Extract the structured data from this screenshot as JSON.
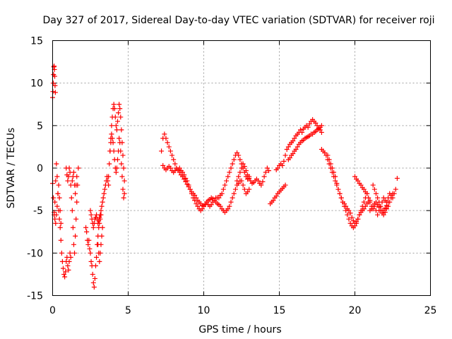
{
  "chart_data": {
    "type": "scatter",
    "title": "Day 327 of 2017, Sidereal Day-to-day VTEC variation (SDTVAR) for receiver roji",
    "xlabel": "GPS time / hours",
    "ylabel": "SDTVAR / TECUs",
    "xlim": [
      0,
      25
    ],
    "ylim": [
      -15,
      15
    ],
    "xticks": [
      0,
      5,
      10,
      15,
      20,
      25
    ],
    "yticks": [
      -15,
      -10,
      -5,
      0,
      5,
      10,
      15
    ],
    "grid": true,
    "marker": "plus",
    "color": "#ff0000",
    "series": [
      {
        "name": "SDTVAR",
        "x": [
          0.0,
          0.02,
          0.04,
          0.06,
          0.08,
          0.1,
          0.12,
          0.14,
          0.16,
          0.18
        ],
        "y": [
          8.3,
          9.0,
          10.0,
          11.0,
          11.9,
          12.0,
          11.6,
          10.8,
          9.7,
          8.9
        ]
      },
      {
        "name": "SDTVAR",
        "x": [
          0.0,
          0.05,
          0.1,
          0.15,
          0.2,
          0.25,
          0.3,
          0.35,
          0.4,
          0.45,
          0.5,
          0.55,
          0.6,
          0.65,
          0.7,
          0.75,
          0.8,
          0.85,
          0.9,
          0.95,
          1.0,
          1.05,
          1.1,
          1.15,
          1.2
        ],
        "y": [
          -1.8,
          -3.5,
          -5.5,
          -4.0,
          -1.5,
          0.5,
          -1.0,
          -3.0,
          -5.0,
          -6.0,
          -7.0,
          -8.5,
          -10.0,
          -11.0,
          -11.8,
          -12.5,
          -12.8,
          -12.2,
          -11.0,
          -10.5,
          -11.5,
          -12.0,
          -11.0,
          -10.0,
          -10.5
        ]
      },
      {
        "name": "SDTVAR",
        "x": [
          0.1,
          0.15,
          0.2,
          0.25,
          0.3,
          0.35,
          0.4,
          0.45,
          0.5,
          0.55
        ],
        "y": [
          -5.2,
          -6.0,
          -6.5,
          -5.5,
          -4.5,
          -3.0,
          -2.0,
          -3.5,
          -5.0,
          -6.5
        ]
      },
      {
        "name": "SDTVAR",
        "x": [
          0.9,
          0.95,
          1.0,
          1.05,
          1.1,
          1.15,
          1.2,
          1.25,
          1.3,
          1.35,
          1.4,
          1.45,
          1.5,
          1.55,
          1.6,
          1.65,
          1.7
        ],
        "y": [
          0.0,
          -0.8,
          -1.5,
          -1.0,
          0.0,
          -0.5,
          -2.0,
          -3.5,
          -5.0,
          -7.0,
          -9.0,
          -10.0,
          -8.0,
          -6.0,
          -4.0,
          -2.0,
          0.0
        ]
      },
      {
        "name": "SDTVAR",
        "x": [
          1.3,
          1.35,
          1.4,
          1.45,
          1.5,
          1.55,
          1.6
        ],
        "y": [
          -1.5,
          -1.0,
          -0.5,
          -2.0,
          -3.0,
          -2.0,
          -1.0
        ]
      },
      {
        "name": "SDTVAR",
        "x": [
          2.2,
          2.25,
          2.3,
          2.35,
          2.4,
          2.45,
          2.5,
          2.55,
          2.6,
          2.65,
          2.7,
          2.75,
          2.8,
          2.85,
          2.9,
          2.95,
          3.0,
          3.05,
          3.1,
          3.15,
          3.2
        ],
        "y": [
          -7.0,
          -7.5,
          -8.5,
          -9.0,
          -8.5,
          -9.5,
          -10.0,
          -11.0,
          -11.5,
          -12.5,
          -13.5,
          -14.0,
          -13.0,
          -11.5,
          -10.5,
          -9.0,
          -8.0,
          -7.0,
          -6.5,
          -6.0,
          -5.5
        ]
      },
      {
        "name": "SDTVAR",
        "x": [
          2.5,
          2.55,
          2.6,
          2.65,
          2.7,
          2.75,
          2.8,
          2.85,
          2.9,
          2.95,
          3.0,
          3.05,
          3.1,
          3.15,
          3.2,
          3.25,
          3.3,
          3.35,
          3.4,
          3.45,
          3.5,
          3.55,
          3.6,
          3.65,
          3.7
        ],
        "y": [
          -5.0,
          -5.5,
          -6.0,
          -6.5,
          -7.0,
          -6.5,
          -6.0,
          -5.8,
          -5.5,
          -6.0,
          -6.5,
          -6.2,
          -5.8,
          -5.5,
          -5.0,
          -4.5,
          -4.0,
          -3.5,
          -3.0,
          -2.5,
          -2.0,
          -1.5,
          -1.0,
          -1.5,
          -2.0
        ]
      },
      {
        "name": "SDTVAR",
        "x": [
          3.0,
          3.05,
          3.1,
          3.15,
          3.2,
          3.25,
          3.3
        ],
        "y": [
          -9.0,
          -10.0,
          -11.0,
          -10.0,
          -9.0,
          -8.0,
          -7.0
        ]
      },
      {
        "name": "SDTVAR",
        "x": [
          3.7,
          3.75,
          3.8,
          3.85,
          3.9,
          3.95,
          4.0,
          4.05,
          4.1,
          4.15,
          4.2,
          4.25,
          4.3,
          4.35,
          4.4,
          4.45,
          4.5,
          4.55,
          4.6,
          4.65,
          4.7,
          4.75
        ],
        "y": [
          -1.0,
          0.5,
          2.0,
          3.5,
          5.0,
          6.0,
          7.0,
          7.5,
          7.0,
          6.0,
          5.0,
          4.5,
          5.5,
          6.5,
          7.5,
          7.0,
          6.0,
          4.5,
          3.0,
          1.5,
          0.0,
          -1.5
        ]
      },
      {
        "name": "SDTVAR",
        "x": [
          3.8,
          3.85,
          3.9,
          3.95,
          4.0,
          4.05,
          4.1,
          4.15,
          4.2,
          4.25,
          4.3,
          4.35,
          4.4,
          4.45,
          4.5,
          4.55,
          4.6,
          4.65,
          4.7,
          4.75
        ],
        "y": [
          2.0,
          3.0,
          4.0,
          3.5,
          3.0,
          2.0,
          1.0,
          0.0,
          -0.5,
          0.0,
          1.0,
          2.0,
          3.5,
          3.0,
          2.0,
          0.5,
          -1.0,
          -2.5,
          -3.5,
          -3.0
        ]
      },
      {
        "name": "SDTVAR",
        "x": [
          7.2,
          7.3,
          7.4,
          7.5,
          7.6,
          7.7,
          7.8,
          7.9,
          8.0,
          8.1,
          8.2,
          8.3,
          8.4,
          8.5,
          8.6,
          8.7,
          8.8,
          8.9,
          9.0,
          9.1,
          9.2,
          9.3,
          9.4,
          9.5,
          9.6,
          9.7,
          9.8,
          9.9,
          10.0,
          10.1,
          10.2,
          10.3,
          10.4,
          10.5,
          10.6,
          10.7,
          10.8,
          10.9,
          11.0,
          11.1,
          11.2,
          11.3,
          11.4,
          11.5,
          11.6,
          11.7,
          11.8,
          11.9,
          12.0,
          12.1,
          12.2,
          12.3,
          12.4,
          12.5,
          12.6,
          12.7,
          12.8,
          12.9,
          13.0
        ],
        "y": [
          2.0,
          3.5,
          4.0,
          3.5,
          3.0,
          2.5,
          2.0,
          1.5,
          1.0,
          0.5,
          0.0,
          -0.2,
          0.0,
          -0.3,
          -0.5,
          -0.8,
          -1.2,
          -1.5,
          -2.0,
          -2.5,
          -3.0,
          -3.5,
          -3.8,
          -4.2,
          -4.5,
          -4.8,
          -5.0,
          -4.8,
          -4.5,
          -4.2,
          -4.0,
          -4.3,
          -4.5,
          -4.3,
          -4.0,
          -3.8,
          -3.5,
          -3.5,
          -3.5,
          -3.2,
          -3.0,
          -2.5,
          -2.0,
          -1.5,
          -1.0,
          -0.5,
          0.0,
          0.5,
          1.0,
          1.5,
          1.8,
          1.5,
          1.0,
          0.5,
          0.0,
          -0.5,
          -1.0,
          -1.3,
          -1.0
        ]
      },
      {
        "name": "SDTVAR",
        "x": [
          7.3,
          7.4,
          7.5,
          7.6,
          7.7,
          7.8,
          7.9,
          8.0,
          8.1,
          8.2,
          8.3,
          8.4,
          8.5,
          8.6,
          8.7,
          8.8,
          8.9,
          9.0,
          9.1,
          9.2,
          9.3,
          9.4,
          9.5,
          9.6,
          9.7,
          9.8,
          9.9,
          10.0,
          10.1,
          10.2,
          10.3,
          10.4,
          10.5,
          10.6,
          10.7,
          10.8,
          10.9,
          11.0,
          11.1,
          11.2,
          11.3,
          11.4,
          11.5,
          11.6,
          11.7,
          11.8,
          11.9,
          12.0,
          12.1,
          12.2,
          12.3,
          12.4,
          12.5,
          12.6,
          12.7,
          12.8,
          12.9,
          13.0
        ],
        "y": [
          0.3,
          0.0,
          -0.2,
          0.0,
          0.2,
          0.0,
          -0.3,
          -0.5,
          -0.3,
          0.0,
          -0.2,
          -0.5,
          -0.8,
          -1.0,
          -1.3,
          -1.6,
          -1.9,
          -2.2,
          -2.5,
          -2.8,
          -3.0,
          -3.2,
          -3.5,
          -3.8,
          -4.0,
          -4.2,
          -4.4,
          -4.5,
          -4.3,
          -4.0,
          -3.8,
          -3.7,
          -3.5,
          -3.6,
          -3.8,
          -4.0,
          -4.2,
          -4.3,
          -4.5,
          -4.8,
          -5.0,
          -5.2,
          -5.0,
          -4.8,
          -4.5,
          -4.0,
          -3.5,
          -3.0,
          -2.5,
          -2.0,
          -1.8,
          -1.5,
          -1.5,
          -2.0,
          -2.5,
          -3.0,
          -2.8,
          -2.5
        ]
      },
      {
        "name": "SDTVAR",
        "x": [
          12.2,
          12.3,
          12.4,
          12.5,
          12.6,
          12.7,
          12.8,
          12.9,
          13.0,
          13.1,
          13.2,
          13.3,
          13.4,
          13.5,
          13.6,
          13.7,
          13.8,
          13.9,
          14.0,
          14.1,
          14.2,
          14.3
        ],
        "y": [
          -1.5,
          -1.0,
          -0.5,
          0.0,
          0.5,
          0.2,
          -0.3,
          -0.8,
          -1.2,
          -1.5,
          -1.8,
          -1.7,
          -1.5,
          -1.3,
          -1.5,
          -1.8,
          -2.0,
          -1.6,
          -1.0,
          -0.5,
          0.0,
          -0.3
        ]
      },
      {
        "name": "SDTVAR",
        "x": [
          14.4,
          14.5,
          14.6,
          14.7,
          14.8,
          14.9,
          15.0,
          15.1,
          15.2,
          15.3,
          15.4
        ],
        "y": [
          -4.2,
          -4.0,
          -3.8,
          -3.5,
          -3.3,
          -3.0,
          -2.8,
          -2.6,
          -2.4,
          -2.2,
          -2.0
        ]
      },
      {
        "name": "SDTVAR",
        "x": [
          14.8,
          14.9,
          15.0,
          15.1,
          15.2,
          15.3,
          15.4,
          15.5,
          15.6,
          15.7,
          15.8,
          15.9,
          16.0,
          16.1,
          16.2,
          16.3,
          16.4,
          16.5,
          16.6,
          16.7,
          16.8,
          16.9,
          17.0,
          17.1,
          17.2,
          17.3,
          17.4,
          17.5,
          17.6,
          17.7,
          17.8
        ],
        "y": [
          -0.2,
          0.0,
          0.3,
          0.5,
          0.3,
          0.8,
          1.5,
          2.2,
          2.5,
          2.8,
          3.0,
          3.2,
          3.5,
          3.8,
          4.0,
          4.2,
          4.5,
          4.2,
          4.6,
          4.8,
          5.0,
          4.8,
          5.2,
          5.5,
          5.7,
          5.5,
          5.3,
          5.0,
          4.7,
          4.5,
          4.2
        ]
      },
      {
        "name": "SDTVAR",
        "x": [
          15.6,
          15.7,
          15.8,
          15.9,
          16.0,
          16.1,
          16.2,
          16.3,
          16.4,
          16.5,
          16.6,
          16.7,
          16.8,
          16.9,
          17.0,
          17.1,
          17.2,
          17.3,
          17.4,
          17.5,
          17.6,
          17.7,
          17.8
        ],
        "y": [
          1.0,
          1.2,
          1.5,
          1.7,
          2.0,
          2.2,
          2.5,
          2.8,
          3.0,
          3.2,
          3.3,
          3.5,
          3.6,
          3.7,
          3.8,
          4.0,
          4.0,
          4.2,
          4.3,
          4.5,
          4.6,
          4.8,
          5.0
        ]
      },
      {
        "name": "SDTVAR",
        "x": [
          17.8,
          17.9,
          18.0,
          18.1,
          18.2,
          18.3,
          18.4,
          18.5,
          18.6,
          18.7,
          18.8,
          18.9,
          19.0,
          19.1,
          19.2,
          19.3,
          19.4,
          19.5,
          19.6,
          19.7,
          19.8,
          19.9,
          20.0,
          20.1,
          20.2,
          20.3,
          20.4,
          20.5,
          20.6,
          20.7,
          20.8
        ],
        "y": [
          2.2,
          2.0,
          1.8,
          1.5,
          1.0,
          0.5,
          0.0,
          -0.5,
          -1.0,
          -1.5,
          -2.0,
          -2.5,
          -3.0,
          -3.5,
          -4.0,
          -4.5,
          -5.0,
          -5.5,
          -6.0,
          -6.5,
          -6.8,
          -7.0,
          -6.8,
          -6.5,
          -6.0,
          -5.5,
          -5.0,
          -4.5,
          -4.0,
          -3.5,
          -3.0
        ]
      },
      {
        "name": "SDTVAR",
        "x": [
          18.2,
          18.3,
          18.4,
          18.5,
          18.6,
          18.7,
          18.8,
          18.9,
          19.0,
          19.1,
          19.2,
          19.3,
          19.4,
          19.5,
          19.6,
          19.7,
          19.8,
          19.9,
          20.0,
          20.1,
          20.2,
          20.3,
          20.4,
          20.5,
          20.6,
          20.7,
          20.8,
          20.9,
          21.0
        ],
        "y": [
          1.5,
          1.0,
          0.5,
          0.0,
          -0.5,
          -1.0,
          -1.8,
          -2.5,
          -3.0,
          -3.5,
          -4.0,
          -4.2,
          -4.5,
          -4.8,
          -5.0,
          -5.3,
          -5.8,
          -6.2,
          -6.5,
          -6.3,
          -6.0,
          -5.5,
          -5.2,
          -5.0,
          -4.8,
          -4.5,
          -4.2,
          -4.0,
          -3.8
        ]
      },
      {
        "name": "SDTVAR",
        "x": [
          20.0,
          20.1,
          20.2,
          20.3,
          20.4,
          20.5,
          20.6,
          20.7
        ],
        "y": [
          -1.0,
          -1.3,
          -1.5,
          -1.8,
          -2.0,
          -2.3,
          -2.5,
          -2.8
        ]
      },
      {
        "name": "SDTVAR",
        "x": [
          20.8,
          20.9,
          21.0,
          21.1,
          21.2,
          21.3,
          21.4,
          21.5,
          21.6,
          21.7,
          21.8,
          21.9,
          22.0,
          22.1,
          22.2,
          22.3,
          22.4,
          22.5,
          22.6,
          22.7,
          22.8
        ],
        "y": [
          -3.0,
          -3.5,
          -4.0,
          -4.5,
          -4.8,
          -4.5,
          -5.0,
          -5.5,
          -5.0,
          -4.5,
          -4.0,
          -3.5,
          -3.8,
          -4.0,
          -3.5,
          -3.0,
          -3.2,
          -3.5,
          -3.0,
          -2.5,
          -1.2
        ]
      },
      {
        "name": "SDTVAR",
        "x": [
          21.2,
          21.3,
          21.4,
          21.5,
          21.6,
          21.7,
          21.8,
          21.9,
          22.0,
          22.1,
          22.2,
          22.3,
          22.4,
          22.5
        ],
        "y": [
          -2.0,
          -2.5,
          -3.0,
          -3.5,
          -4.0,
          -4.5,
          -5.0,
          -5.5,
          -5.2,
          -4.8,
          -4.5,
          -4.0,
          -3.5,
          -3.0
        ]
      },
      {
        "name": "SDTVAR",
        "x": [
          21.0,
          21.1,
          21.2,
          21.3,
          21.4,
          21.5,
          21.6,
          21.7,
          21.8,
          21.9,
          22.0,
          22.1,
          22.2
        ],
        "y": [
          -5.0,
          -4.8,
          -4.5,
          -4.2,
          -4.0,
          -4.3,
          -4.6,
          -5.0,
          -5.3,
          -5.0,
          -4.7,
          -4.4,
          -4.0
        ]
      }
    ]
  }
}
